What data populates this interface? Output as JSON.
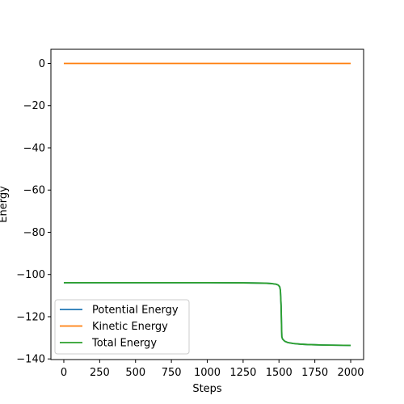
{
  "chart_data": {
    "type": "line",
    "title": "",
    "xlabel": "Steps",
    "ylabel": "Energy",
    "xlim": [
      -90,
      2090
    ],
    "ylim": [
      -140.3,
      6.7
    ],
    "xticks": [
      0,
      250,
      500,
      750,
      1000,
      1250,
      1500,
      1750,
      2000
    ],
    "yticks": [
      0,
      -20,
      -40,
      -60,
      -80,
      -100,
      -120,
      -140
    ],
    "grid": false,
    "legend": {
      "placement": "lower-left"
    },
    "series": [
      {
        "name": "Potential Energy",
        "color": "#1f77b4",
        "x": [
          0,
          250,
          500,
          750,
          1000,
          1250,
          1400,
          1450,
          1480,
          1495,
          1505,
          1510,
          1515,
          1518,
          1520,
          1525,
          1540,
          1560,
          1600,
          1650,
          1700,
          1750,
          1800,
          1900,
          2000
        ],
        "y": [
          -103.9,
          -103.9,
          -103.9,
          -103.9,
          -103.9,
          -103.95,
          -104.1,
          -104.3,
          -104.6,
          -105.0,
          -105.8,
          -107.5,
          -115.0,
          -125.0,
          -129.5,
          -130.6,
          -131.6,
          -132.2,
          -132.7,
          -133.0,
          -133.2,
          -133.3,
          -133.4,
          -133.5,
          -133.6
        ]
      },
      {
        "name": "Kinetic Energy",
        "color": "#ff7f0e",
        "x": [
          0,
          500,
          1000,
          1500,
          2000
        ],
        "y": [
          0,
          0,
          0,
          0,
          0
        ]
      },
      {
        "name": "Total Energy",
        "color": "#2ca02c",
        "x": [
          0,
          250,
          500,
          750,
          1000,
          1250,
          1400,
          1450,
          1480,
          1495,
          1505,
          1510,
          1515,
          1518,
          1520,
          1525,
          1540,
          1560,
          1600,
          1650,
          1700,
          1750,
          1800,
          1900,
          2000
        ],
        "y": [
          -103.9,
          -103.9,
          -103.9,
          -103.9,
          -103.9,
          -103.95,
          -104.1,
          -104.3,
          -104.6,
          -105.0,
          -105.8,
          -107.5,
          -115.0,
          -125.0,
          -129.5,
          -130.6,
          -131.6,
          -132.2,
          -132.7,
          -133.0,
          -133.2,
          -133.3,
          -133.4,
          -133.5,
          -133.6
        ]
      }
    ]
  }
}
